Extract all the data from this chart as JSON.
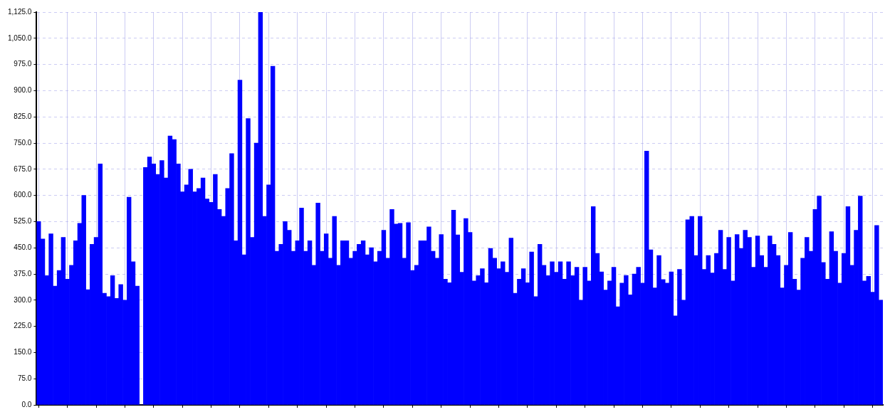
{
  "chart_data": {
    "type": "bar",
    "categories": [
      null,
      null,
      null,
      null,
      null,
      null,
      null,
      null,
      null,
      null,
      null,
      null,
      null,
      null,
      null,
      null,
      null,
      null,
      null,
      null,
      null,
      null,
      null,
      null,
      null,
      null,
      null,
      null,
      null,
      null,
      null,
      null,
      null,
      null,
      null,
      null,
      null,
      null,
      null,
      null,
      null,
      null,
      null,
      null,
      null,
      null,
      null,
      null,
      null,
      null,
      null,
      null,
      null,
      null,
      null,
      null,
      null,
      null,
      null,
      null,
      null,
      null,
      null,
      null,
      null,
      null,
      null,
      null,
      null,
      null,
      null,
      null,
      null,
      null,
      null,
      null,
      null,
      null,
      null,
      null,
      null,
      null,
      null,
      null,
      null,
      null,
      null,
      null,
      null,
      null,
      null,
      null,
      null,
      null,
      null,
      null,
      null,
      null,
      null,
      null,
      null,
      null,
      null,
      null,
      null,
      null,
      null,
      null,
      null,
      null,
      null,
      null,
      null,
      null,
      null,
      null,
      null,
      null,
      null,
      null,
      null,
      null,
      null,
      null,
      null,
      null,
      null,
      null,
      null,
      null,
      null,
      null,
      null,
      null,
      null,
      null,
      null,
      null,
      null,
      null,
      null,
      null,
      null,
      null,
      null,
      null,
      null,
      null,
      null,
      null,
      null,
      null,
      null,
      null,
      null,
      null,
      null,
      null,
      null,
      null,
      null,
      null,
      null,
      null,
      null,
      null,
      null,
      null,
      null,
      null,
      null,
      null,
      null,
      null,
      null,
      null,
      null,
      null,
      null,
      null,
      null,
      null,
      null,
      null,
      null,
      null,
      null,
      null,
      null,
      null,
      null,
      null,
      null,
      null,
      null,
      null,
      null,
      null,
      null,
      null,
      null,
      null,
      null,
      null,
      null,
      null
    ],
    "values": [
      525,
      475,
      370,
      490,
      340,
      385,
      480,
      360,
      400,
      470,
      520,
      600,
      330,
      460,
      480,
      690,
      320,
      310,
      370,
      305,
      345,
      300,
      595,
      410,
      340,
      0,
      680,
      710,
      690,
      660,
      700,
      650,
      770,
      760,
      690,
      610,
      630,
      675,
      610,
      620,
      650,
      590,
      580,
      660,
      560,
      540,
      620,
      720,
      470,
      930,
      430,
      820,
      480,
      750,
      1125,
      540,
      630,
      970,
      440,
      460,
      525,
      500,
      440,
      470,
      564,
      440,
      470,
      400,
      578,
      440,
      490,
      420,
      540,
      400,
      470,
      470,
      420,
      440,
      460,
      470,
      430,
      450,
      410,
      440,
      500,
      420,
      560,
      518,
      520,
      420,
      522,
      385,
      400,
      470,
      470,
      510,
      440,
      420,
      488,
      360,
      350,
      558,
      487,
      380,
      534,
      494,
      355,
      370,
      390,
      350,
      448,
      420,
      390,
      410,
      380,
      478,
      320,
      360,
      390,
      350,
      438,
      310,
      460,
      400,
      370,
      410,
      380,
      410,
      360,
      410,
      370,
      394,
      300,
      394,
      355,
      568,
      434,
      381,
      329,
      355,
      394,
      281,
      349,
      371,
      315,
      375,
      394,
      349,
      727,
      444,
      335,
      428,
      359,
      349,
      381,
      255,
      388,
      300,
      530,
      540,
      428,
      540,
      388,
      428,
      378,
      434,
      500,
      388,
      480,
      355,
      488,
      448,
      500,
      480,
      394,
      484,
      428,
      394,
      484,
      460,
      428,
      335,
      400,
      494,
      360,
      329,
      420,
      480,
      440,
      560,
      598,
      408,
      360,
      496,
      440,
      349,
      434,
      568,
      400,
      500,
      598,
      355,
      368,
      323,
      514,
      300
    ],
    "color": "#0000ff",
    "ylim": [
      0,
      1125
    ],
    "yticks": [
      {
        "value": 0,
        "label": "0.0"
      },
      {
        "value": 75,
        "label": "75.0"
      },
      {
        "value": 150,
        "label": "150.0"
      },
      {
        "value": 225,
        "label": "225.0"
      },
      {
        "value": 300,
        "label": "300.0"
      },
      {
        "value": 375,
        "label": "375.0"
      },
      {
        "value": 450,
        "label": "450.0"
      },
      {
        "value": 525,
        "label": "525.0"
      },
      {
        "value": 600,
        "label": "600.0"
      },
      {
        "value": 675,
        "label": "675.0"
      },
      {
        "value": 750,
        "label": "750.0"
      },
      {
        "value": 825,
        "label": "825.0"
      },
      {
        "value": 900,
        "label": "900.0"
      },
      {
        "value": 975,
        "label": "975.0"
      },
      {
        "value": 1050,
        "label": "1,050.0"
      },
      {
        "value": 1125,
        "label": "1,125.0"
      }
    ],
    "grid": true,
    "tick_labels": "y"
  }
}
